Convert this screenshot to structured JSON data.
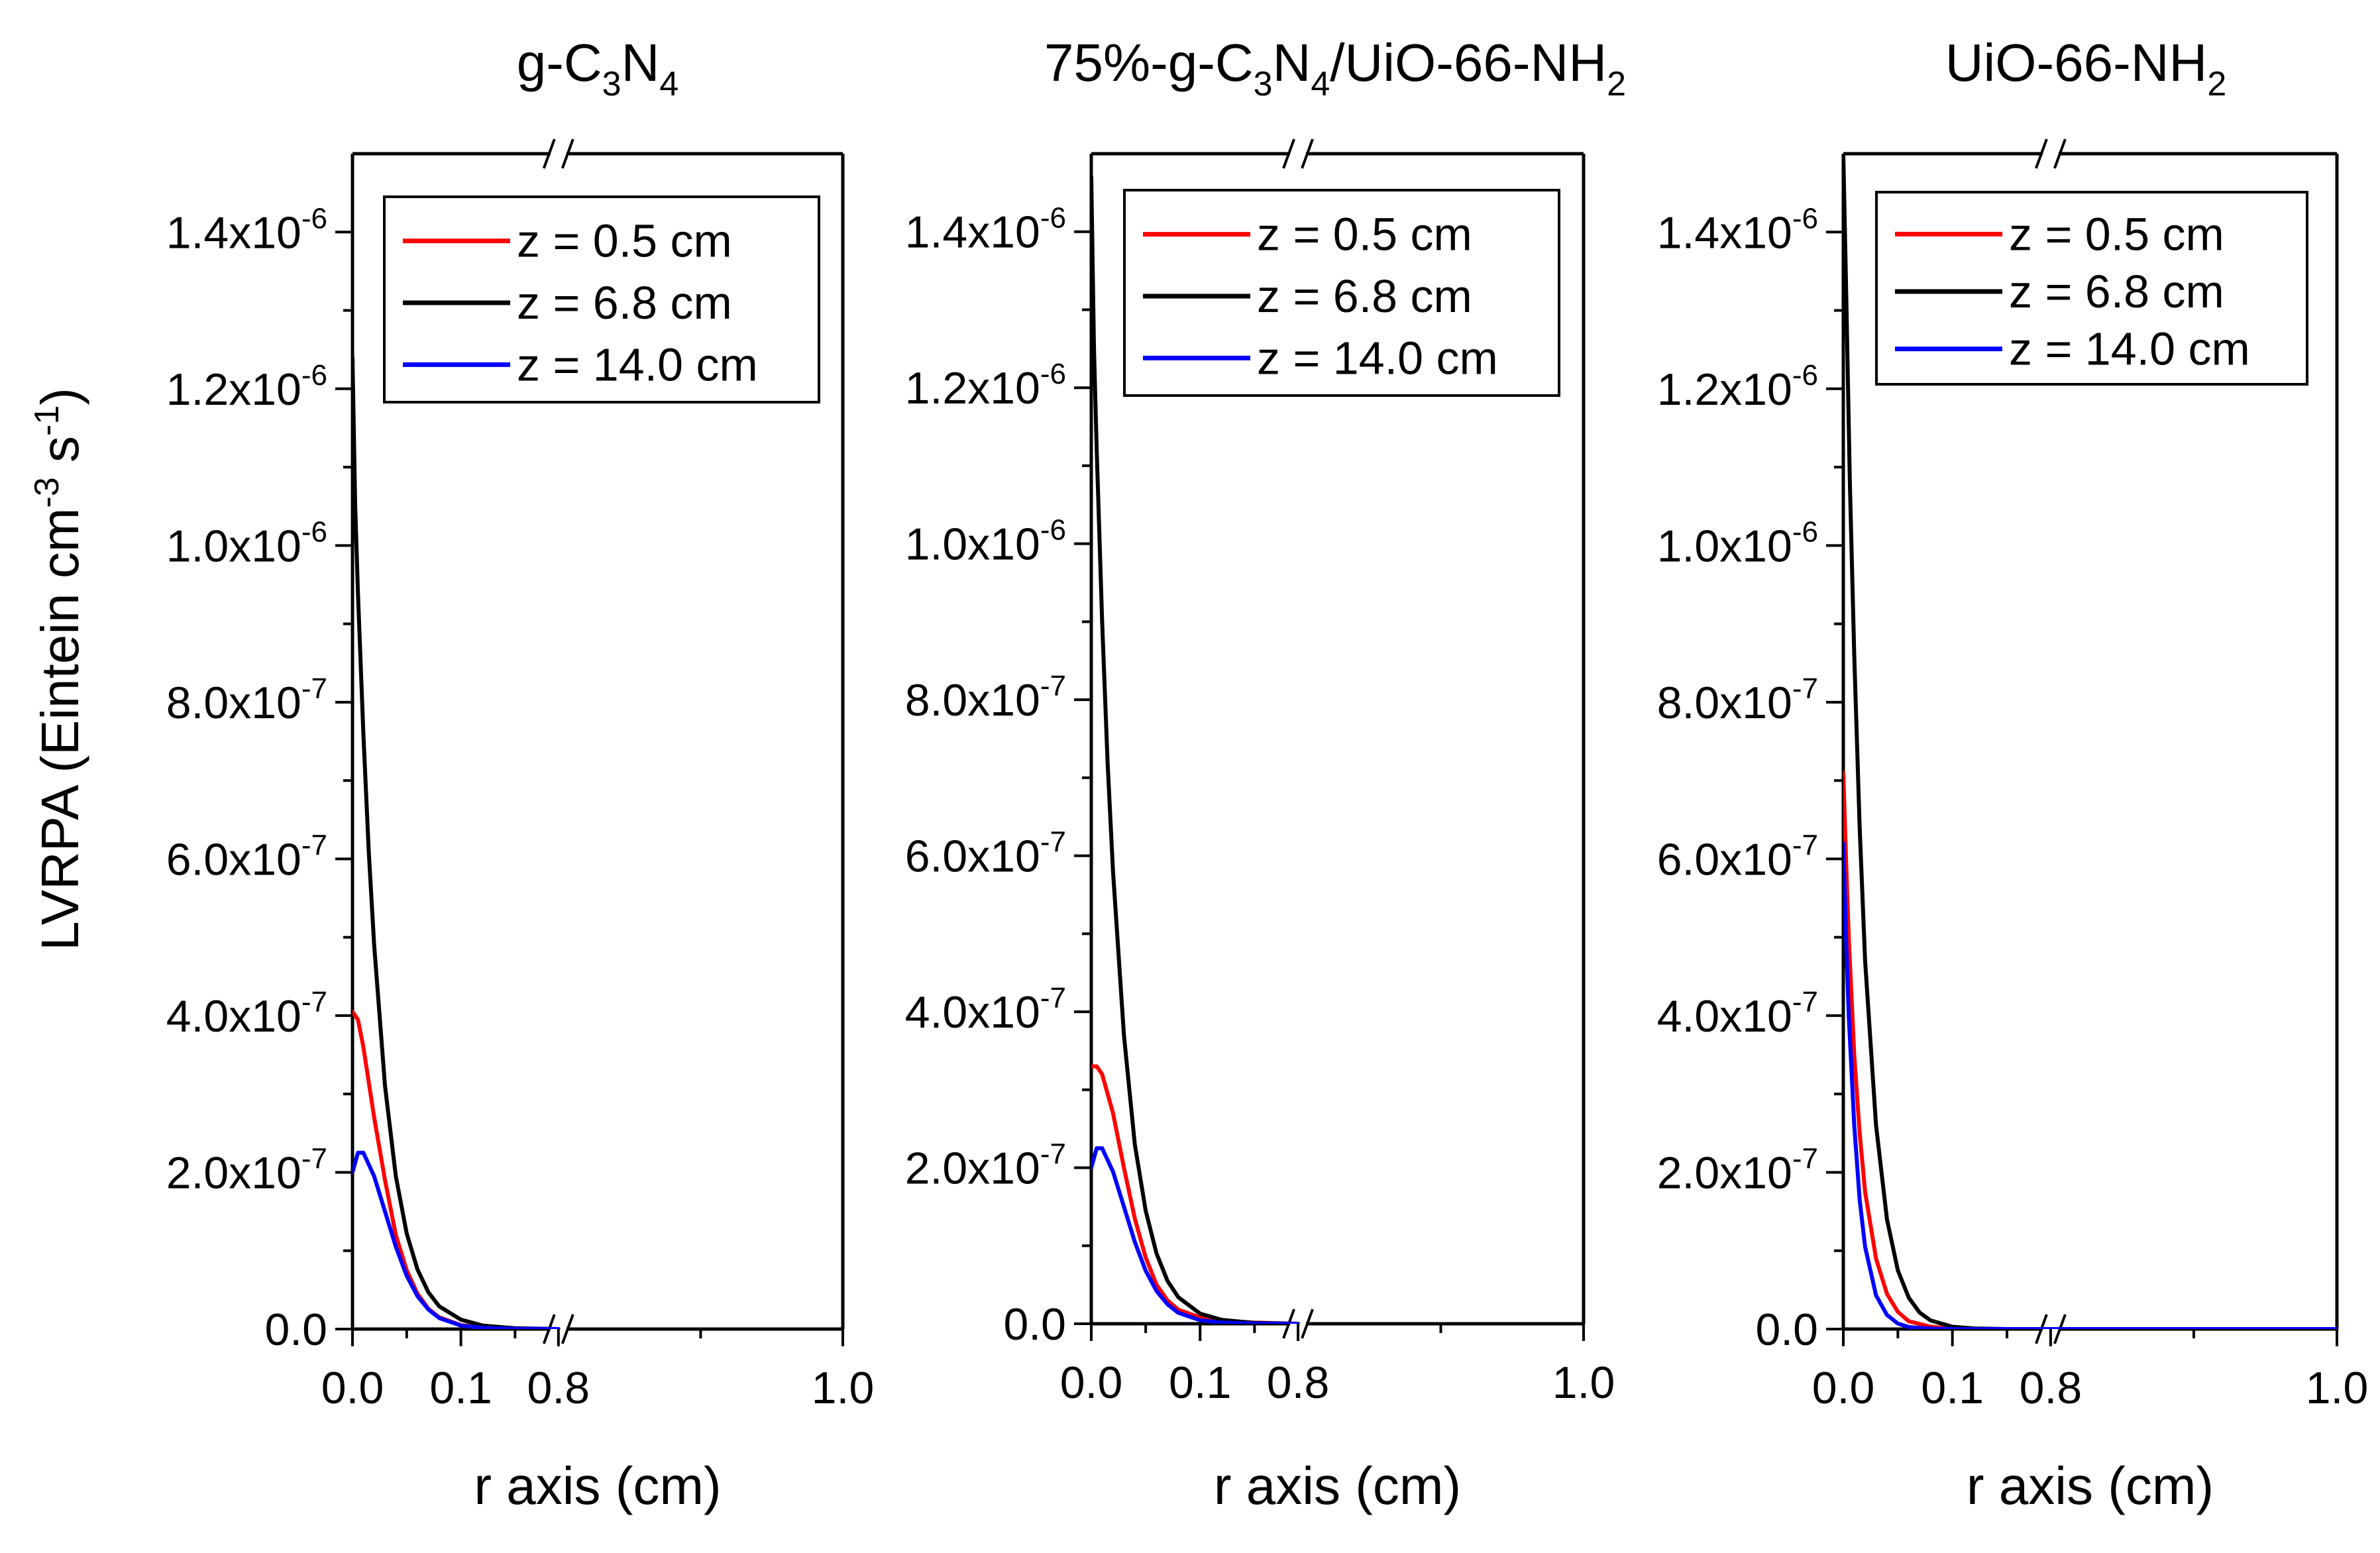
{
  "figure": {
    "ylabel_main": "LVRPA (Eintein cm",
    "ylabel_sup1": "-3",
    "ylabel_mid": " s",
    "ylabel_sup2": "-1",
    "ylabel_end": ")"
  },
  "colors": {
    "z05": "#ff0000",
    "z68": "#000000",
    "z140": "#0000ff"
  },
  "chart_data": [
    {
      "type": "line",
      "title_parts": [
        [
          "g-C",
          ""
        ],
        [
          "3",
          "sub"
        ],
        [
          "N",
          ""
        ],
        [
          "4",
          "sub"
        ]
      ],
      "xlabel": "r axis (cm)",
      "ylabel": "LVRPA (Eintein cm-3 s-1)",
      "x_axis_break": true,
      "xticks": [
        "0.0",
        "0.1",
        "0.8",
        "1.0"
      ],
      "yticks": [
        {
          "mant": "0.0",
          "exp": ""
        },
        {
          "mant": "2.0x10",
          "exp": "-7"
        },
        {
          "mant": "4.0x10",
          "exp": "-7"
        },
        {
          "mant": "6.0x10",
          "exp": "-7"
        },
        {
          "mant": "8.0x10",
          "exp": "-7"
        },
        {
          "mant": "1.0x10",
          "exp": "-6"
        },
        {
          "mant": "1.2x10",
          "exp": "-6"
        },
        {
          "mant": "1.4x10",
          "exp": "-6"
        }
      ],
      "ylim": [
        0,
        1.5e-06
      ],
      "legend_position": "top-right",
      "series": [
        {
          "name": "z = 0.5 cm",
          "color": "#ff0000",
          "points": [
            [
              0,
              4.05e-07
            ],
            [
              0.005,
              3.95e-07
            ],
            [
              0.01,
              3.6e-07
            ],
            [
              0.02,
              2.7e-07
            ],
            [
              0.03,
              1.9e-07
            ],
            [
              0.04,
              1.2e-07
            ],
            [
              0.05,
              7.5e-08
            ],
            [
              0.06,
              4.5e-08
            ],
            [
              0.07,
              2.6e-08
            ],
            [
              0.08,
              1.5e-08
            ],
            [
              0.1,
              5e-09
            ],
            [
              0.12,
              2e-09
            ],
            [
              0.15,
              5e-10
            ],
            [
              0.19,
              0
            ]
          ]
        },
        {
          "name": "z = 6.8 cm",
          "color": "#000000",
          "points": [
            [
              0,
              1.24e-06
            ],
            [
              0.0025,
              1.05e-06
            ],
            [
              0.005,
              9.4e-07
            ],
            [
              0.01,
              7.6e-07
            ],
            [
              0.015,
              6.1e-07
            ],
            [
              0.02,
              4.9e-07
            ],
            [
              0.03,
              3.1e-07
            ],
            [
              0.04,
              1.95e-07
            ],
            [
              0.05,
              1.22e-07
            ],
            [
              0.06,
              7.6e-08
            ],
            [
              0.07,
              4.7e-08
            ],
            [
              0.08,
              2.9e-08
            ],
            [
              0.1,
              1.2e-08
            ],
            [
              0.12,
              4.5e-09
            ],
            [
              0.15,
              1e-09
            ],
            [
              0.19,
              0
            ]
          ]
        },
        {
          "name": "z = 14.0 cm",
          "color": "#0000ff",
          "points": [
            [
              0,
              2e-07
            ],
            [
              0.005,
              2.25e-07
            ],
            [
              0.01,
              2.25e-07
            ],
            [
              0.02,
              1.95e-07
            ],
            [
              0.03,
              1.5e-07
            ],
            [
              0.04,
              1.05e-07
            ],
            [
              0.05,
              6.8e-08
            ],
            [
              0.06,
              4.2e-08
            ],
            [
              0.07,
              2.5e-08
            ],
            [
              0.08,
              1.4e-08
            ],
            [
              0.1,
              4.5e-09
            ],
            [
              0.12,
              1.5e-09
            ],
            [
              0.15,
              3e-10
            ],
            [
              0.19,
              0
            ]
          ]
        }
      ]
    },
    {
      "type": "line",
      "title_parts": [
        [
          "75%-g-C",
          ""
        ],
        [
          "3",
          "sub"
        ],
        [
          "N",
          ""
        ],
        [
          "4",
          "sub"
        ],
        [
          "/UiO-66-NH",
          ""
        ],
        [
          "2",
          "sub"
        ]
      ],
      "xlabel": "r axis (cm)",
      "ylabel": "LVRPA (Eintein cm-3 s-1)",
      "x_axis_break": true,
      "xticks": [
        "0.0",
        "0.1",
        "0.8",
        "1.0"
      ],
      "yticks": [
        {
          "mant": "0.0",
          "exp": ""
        },
        {
          "mant": "2.0x10",
          "exp": "-7"
        },
        {
          "mant": "4.0x10",
          "exp": "-7"
        },
        {
          "mant": "6.0x10",
          "exp": "-7"
        },
        {
          "mant": "8.0x10",
          "exp": "-7"
        },
        {
          "mant": "1.0x10",
          "exp": "-6"
        },
        {
          "mant": "1.2x10",
          "exp": "-6"
        },
        {
          "mant": "1.4x10",
          "exp": "-6"
        }
      ],
      "ylim": [
        0,
        1.5e-06
      ],
      "legend_position": "top-right",
      "series": [
        {
          "name": "z = 0.5 cm",
          "color": "#ff0000",
          "points": [
            [
              0,
              3.3e-07
            ],
            [
              0.005,
              3.3e-07
            ],
            [
              0.01,
              3.2e-07
            ],
            [
              0.02,
              2.7e-07
            ],
            [
              0.03,
              2e-07
            ],
            [
              0.04,
              1.35e-07
            ],
            [
              0.05,
              8.5e-08
            ],
            [
              0.06,
              5e-08
            ],
            [
              0.07,
              3e-08
            ],
            [
              0.08,
              1.8e-08
            ],
            [
              0.1,
              8e-09
            ],
            [
              0.12,
              4e-09
            ],
            [
              0.15,
              1.5e-09
            ],
            [
              0.19,
              0
            ]
          ]
        },
        {
          "name": "z = 6.8 cm",
          "color": "#000000",
          "points": [
            [
              0,
              1.47e-06
            ],
            [
              0.0025,
              1.25e-06
            ],
            [
              0.005,
              1.12e-06
            ],
            [
              0.01,
              9e-07
            ],
            [
              0.015,
              7.2e-07
            ],
            [
              0.02,
              5.8e-07
            ],
            [
              0.03,
              3.7e-07
            ],
            [
              0.04,
              2.3e-07
            ],
            [
              0.05,
              1.45e-07
            ],
            [
              0.06,
              9e-08
            ],
            [
              0.07,
              5.5e-08
            ],
            [
              0.08,
              3.4e-08
            ],
            [
              0.1,
              1.3e-08
            ],
            [
              0.12,
              5e-09
            ],
            [
              0.15,
              1e-09
            ],
            [
              0.19,
              0
            ]
          ]
        },
        {
          "name": "z = 14.0 cm",
          "color": "#0000ff",
          "points": [
            [
              0,
              2e-07
            ],
            [
              0.005,
              2.25e-07
            ],
            [
              0.01,
              2.25e-07
            ],
            [
              0.02,
              1.95e-07
            ],
            [
              0.03,
              1.5e-07
            ],
            [
              0.04,
              1.05e-07
            ],
            [
              0.05,
              6.8e-08
            ],
            [
              0.06,
              4.2e-08
            ],
            [
              0.07,
              2.5e-08
            ],
            [
              0.08,
              1.4e-08
            ],
            [
              0.1,
              4.5e-09
            ],
            [
              0.12,
              1.5e-09
            ],
            [
              0.15,
              3e-10
            ],
            [
              0.19,
              0
            ]
          ]
        }
      ]
    },
    {
      "type": "line",
      "title_parts": [
        [
          "UiO-66-NH",
          ""
        ],
        [
          "2",
          "sub"
        ]
      ],
      "xlabel": "r axis (cm)",
      "ylabel": "LVRPA (Eintein cm-3 s-1)",
      "x_axis_break": true,
      "xticks": [
        "0.0",
        "0.1",
        "0.8",
        "1.0"
      ],
      "yticks": [
        {
          "mant": "0.0",
          "exp": ""
        },
        {
          "mant": "2.0x10",
          "exp": "-7"
        },
        {
          "mant": "4.0x10",
          "exp": "-7"
        },
        {
          "mant": "6.0x10",
          "exp": "-7"
        },
        {
          "mant": "8.0x10",
          "exp": "-7"
        },
        {
          "mant": "1.0x10",
          "exp": "-6"
        },
        {
          "mant": "1.2x10",
          "exp": "-6"
        },
        {
          "mant": "1.4x10",
          "exp": "-6"
        }
      ],
      "ylim": [
        0,
        1.5e-06
      ],
      "legend_position": "top-right",
      "series": [
        {
          "name": "z = 0.5 cm",
          "color": "#ff0000",
          "points": [
            [
              0,
              7.1e-07
            ],
            [
              0.0025,
              6e-07
            ],
            [
              0.005,
              5e-07
            ],
            [
              0.01,
              3.5e-07
            ],
            [
              0.015,
              2.5e-07
            ],
            [
              0.02,
              1.75e-07
            ],
            [
              0.03,
              9e-08
            ],
            [
              0.04,
              4.5e-08
            ],
            [
              0.05,
              2.2e-08
            ],
            [
              0.06,
              1e-08
            ],
            [
              0.08,
              3e-09
            ],
            [
              0.1,
              8e-10
            ],
            [
              0.14,
              0
            ],
            [
              1.0,
              0
            ]
          ]
        },
        {
          "name": "z = 6.8 cm",
          "color": "#000000",
          "points": [
            [
              0,
              1.5e-06
            ],
            [
              0.003,
              1.3e-06
            ],
            [
              0.006,
              1.08e-06
            ],
            [
              0.01,
              8.6e-07
            ],
            [
              0.015,
              6.4e-07
            ],
            [
              0.02,
              4.7e-07
            ],
            [
              0.03,
              2.6e-07
            ],
            [
              0.04,
              1.4e-07
            ],
            [
              0.05,
              7.5e-08
            ],
            [
              0.06,
              4e-08
            ],
            [
              0.07,
              2.1e-08
            ],
            [
              0.08,
              1.1e-08
            ],
            [
              0.1,
              3e-09
            ],
            [
              0.12,
              8e-10
            ],
            [
              0.15,
              0
            ],
            [
              1.0,
              0
            ]
          ]
        },
        {
          "name": "z = 14.0 cm",
          "color": "#0000ff",
          "points": [
            [
              0,
              6.2e-07
            ],
            [
              0.0025,
              5e-07
            ],
            [
              0.005,
              4e-07
            ],
            [
              0.01,
              2.6e-07
            ],
            [
              0.015,
              1.65e-07
            ],
            [
              0.02,
              1.05e-07
            ],
            [
              0.03,
              4.3e-08
            ],
            [
              0.04,
              1.8e-08
            ],
            [
              0.05,
              7e-09
            ],
            [
              0.06,
              2.5e-09
            ],
            [
              0.08,
              5e-10
            ],
            [
              0.1,
              0
            ],
            [
              1.0,
              0
            ]
          ]
        }
      ]
    }
  ]
}
